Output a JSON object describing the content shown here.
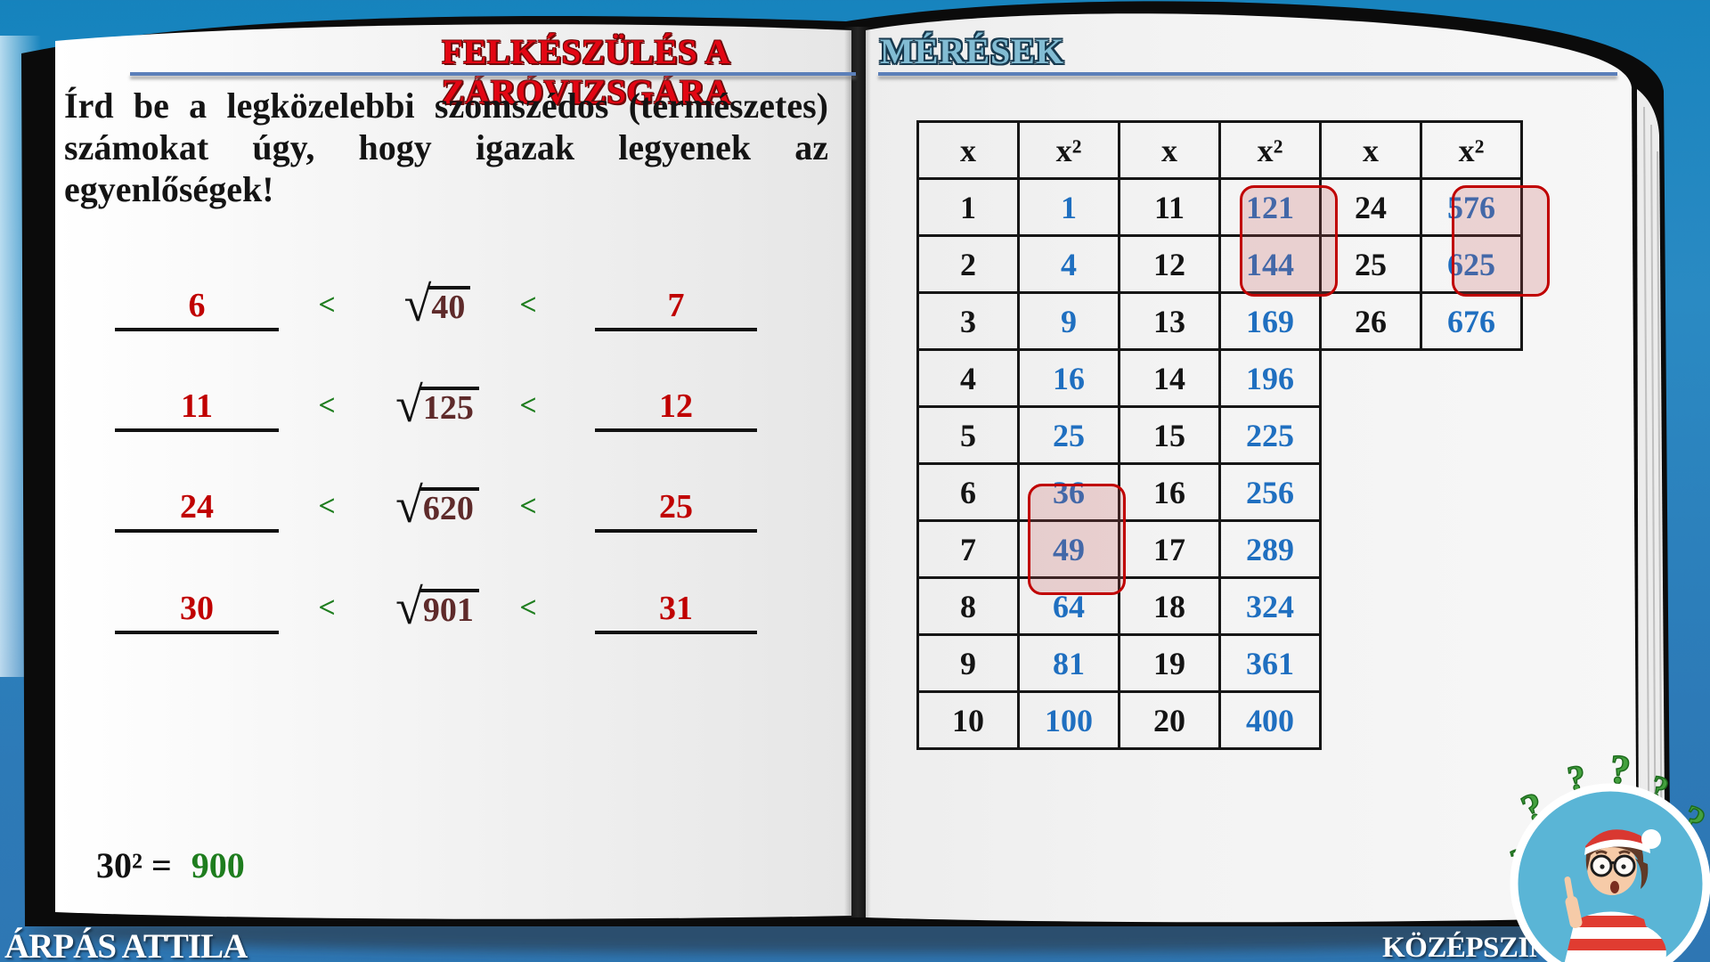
{
  "colors": {
    "background_blue": "#2d7ab7",
    "title_red": "#e30613",
    "title_teal": "#82bcd3",
    "underline_blue": "#5b7fb9",
    "answer_red": "#c00000",
    "radicand_maroon": "#5e2a2a",
    "less_than_green": "#1e7d1e",
    "result_green": "#1e7d1e",
    "square_value_blue": "#1f6fc0",
    "highlight_border_red": "#c00000",
    "footer_text_white": "#ffffff"
  },
  "left_page": {
    "title": "FELKÉSZÜLÉS A ZÁRÓVIZSGÁRA",
    "instruction": "Írd be a legközelebbi szomszédos (természetes) számokat úgy, hogy igazak legyenek az egyenlőségek!",
    "lt_symbol": "<",
    "radical_sign": "√",
    "exercises": [
      {
        "lower": "6",
        "radicand": "40",
        "upper": "7"
      },
      {
        "lower": "11",
        "radicand": "125",
        "upper": "12"
      },
      {
        "lower": "24",
        "radicand": "620",
        "upper": "25"
      },
      {
        "lower": "30",
        "radicand": "901",
        "upper": "31"
      }
    ],
    "note": {
      "lhs": "30² =",
      "result": "900"
    }
  },
  "right_page": {
    "title": "MÉRÉSEK",
    "table": {
      "headers": [
        "x",
        "x²",
        "x",
        "x²",
        "x",
        "x²"
      ],
      "rows": [
        [
          "1",
          "1",
          "11",
          "121",
          "24",
          "576"
        ],
        [
          "2",
          "4",
          "12",
          "144",
          "25",
          "625"
        ],
        [
          "3",
          "9",
          "13",
          "169",
          "26",
          "676"
        ],
        [
          "4",
          "16",
          "14",
          "196",
          "",
          ""
        ],
        [
          "5",
          "25",
          "15",
          "225",
          "",
          ""
        ],
        [
          "6",
          "36",
          "16",
          "256",
          "",
          ""
        ],
        [
          "7",
          "49",
          "17",
          "289",
          "",
          ""
        ],
        [
          "8",
          "64",
          "18",
          "324",
          "",
          ""
        ],
        [
          "9",
          "81",
          "19",
          "361",
          "",
          ""
        ],
        [
          "10",
          "100",
          "20",
          "400",
          "",
          ""
        ]
      ],
      "highlight_groups": [
        {
          "col": 1,
          "row_start": 5,
          "row_end": 6,
          "values": [
            "36",
            "49"
          ]
        },
        {
          "col": 3,
          "row_start": 0,
          "row_end": 1,
          "values": [
            "121",
            "144"
          ]
        },
        {
          "col": 5,
          "row_start": 0,
          "row_end": 1,
          "values": [
            "576",
            "625"
          ]
        }
      ]
    }
  },
  "footer": {
    "author": "ÁRPÁS ATTILA",
    "level": "KÖZÉPSZINT"
  },
  "badge": {
    "question_mark": "?"
  }
}
